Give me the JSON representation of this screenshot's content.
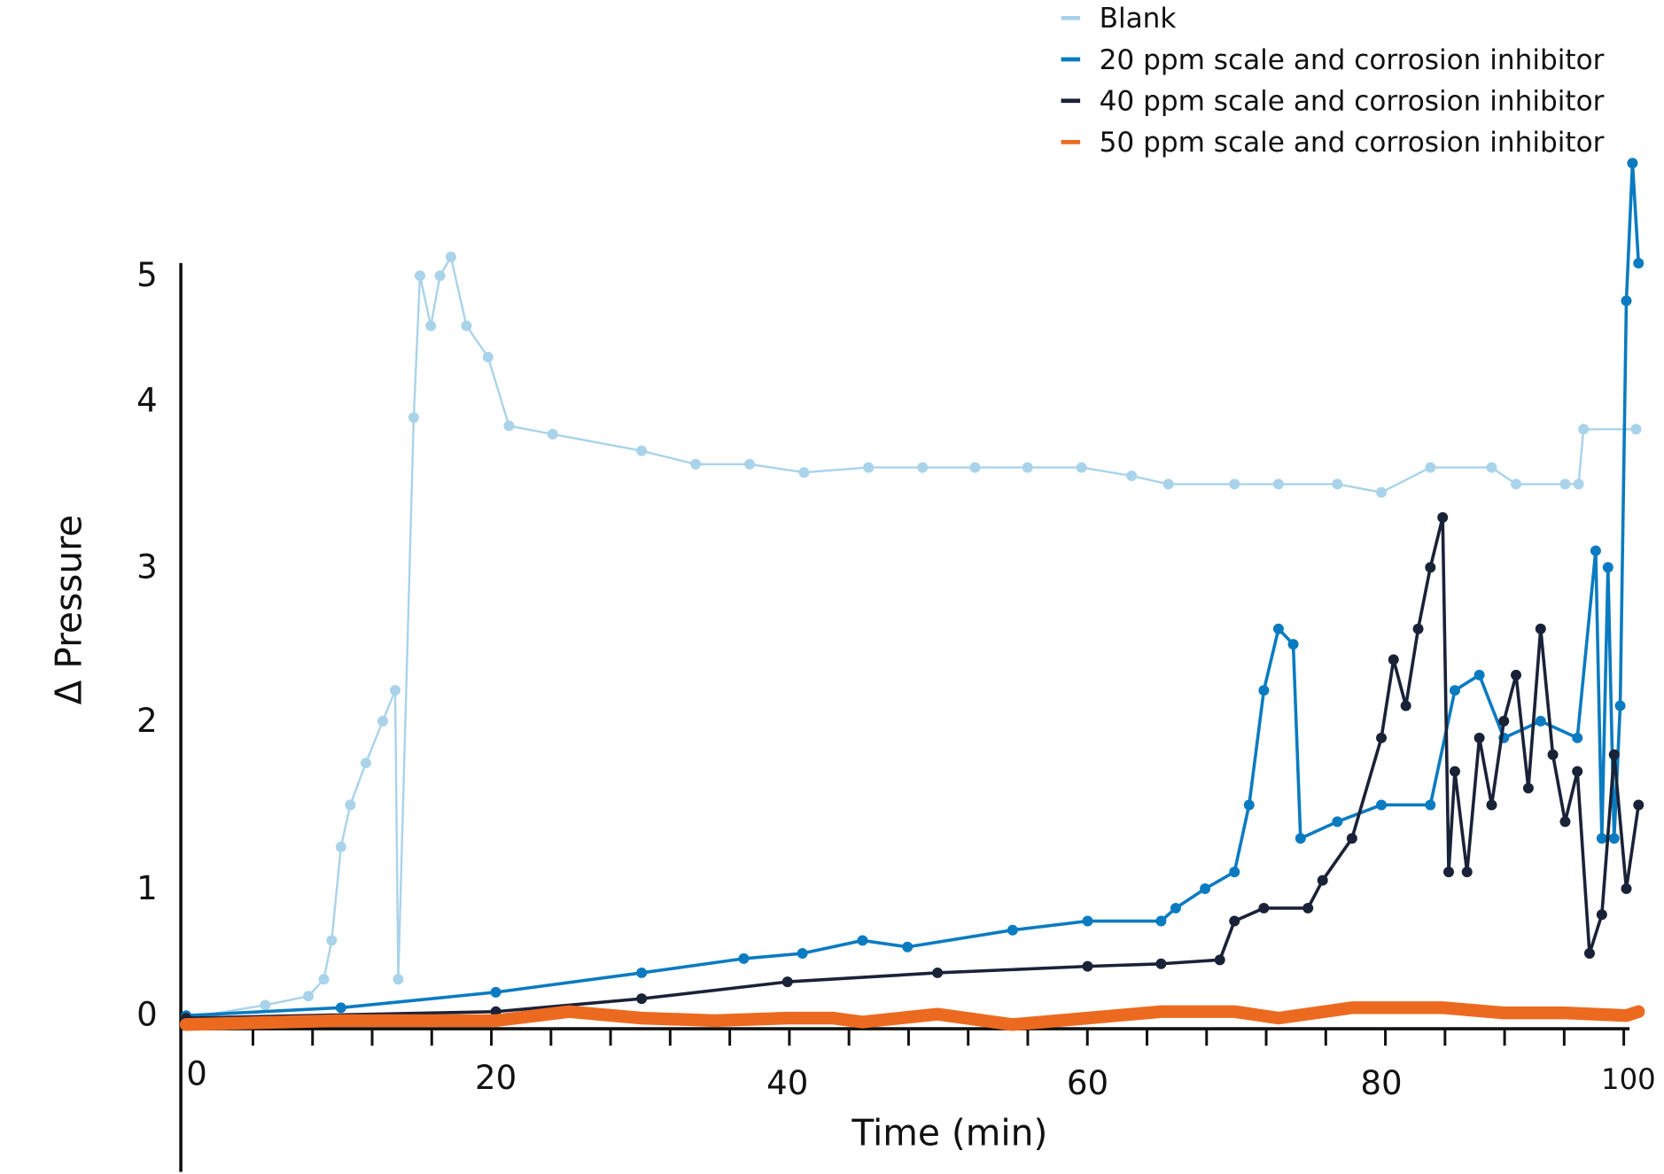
{
  "chart_data": {
    "type": "line",
    "title": "",
    "xlabel": "Time (min)",
    "ylabel": "Δ Pressure",
    "xlim": [
      0,
      101
    ],
    "ylim": [
      -0.1,
      5.9
    ],
    "x_ticks": [
      "0",
      "20",
      "40",
      "60",
      "80",
      "100"
    ],
    "y_ticks": [
      "0",
      "1",
      "2",
      "3",
      "4",
      "5"
    ],
    "grid": false,
    "legend_position": "top-right",
    "series": [
      {
        "name": "Blank",
        "color": "#a9d3ea",
        "width": 2,
        "x": [
          0,
          5.1,
          7.9,
          8.9,
          9.4,
          10,
          10.6,
          11.6,
          12.7,
          13.5,
          13.7,
          14.7,
          15.1,
          15.8,
          16.4,
          17.1,
          18.1,
          19.5,
          20.9,
          23.9,
          30,
          33.7,
          37.4,
          41.1,
          45.4,
          49,
          52.5,
          56,
          59.6,
          63,
          65.5,
          70,
          73,
          77,
          80,
          84,
          89,
          91,
          95,
          96.1,
          96.5,
          100.8
        ],
        "y": [
          0,
          0.1,
          0.17,
          0.3,
          0.6,
          1.25,
          1.5,
          1.75,
          2.0,
          2.2,
          0.3,
          3.9,
          5.0,
          4.6,
          5.0,
          5.15,
          4.6,
          4.35,
          3.85,
          3.8,
          3.7,
          3.62,
          3.62,
          3.57,
          3.6,
          3.6,
          3.6,
          3.6,
          3.6,
          3.55,
          3.5,
          3.5,
          3.5,
          3.5,
          3.45,
          3.6,
          3.6,
          3.5,
          3.5,
          3.5,
          3.83,
          3.83
        ]
      },
      {
        "name": "20 ppm scale and corrosion inhibitor",
        "color": "#0a7bc1",
        "width": 3,
        "x": [
          0,
          10,
          20,
          30,
          37,
          41,
          45,
          48,
          55,
          60,
          65,
          66,
          68,
          70,
          71,
          72,
          73,
          74,
          74.5,
          77,
          80,
          84,
          86,
          88,
          90,
          93,
          96,
          97.5,
          98,
          98.5,
          99,
          99.5,
          100,
          100.5,
          101
        ],
        "y": [
          0.02,
          0.08,
          0.2,
          0.35,
          0.46,
          0.5,
          0.6,
          0.55,
          0.68,
          0.75,
          0.75,
          0.85,
          1.0,
          1.1,
          1.5,
          2.2,
          2.6,
          2.5,
          1.3,
          1.4,
          1.5,
          1.5,
          2.2,
          2.3,
          1.9,
          2.0,
          1.9,
          3.1,
          1.3,
          3.0,
          1.3,
          2.1,
          4.8,
          5.9,
          5.1
        ]
      },
      {
        "name": "40 ppm scale and corrosion inhibitor",
        "color": "#1a2238",
        "width": 3,
        "x": [
          0,
          20,
          30,
          40,
          50,
          60,
          65,
          69,
          70,
          72,
          75,
          76,
          78,
          80,
          81,
          82,
          83,
          84,
          85,
          85.5,
          86,
          87,
          88,
          89,
          90,
          91,
          92,
          93,
          94,
          95,
          96,
          97,
          98,
          99,
          100,
          101
        ],
        "y": [
          0,
          0.05,
          0.15,
          0.28,
          0.35,
          0.4,
          0.42,
          0.45,
          0.75,
          0.85,
          0.85,
          1.05,
          1.3,
          1.9,
          2.4,
          2.1,
          2.6,
          3.0,
          3.3,
          1.1,
          1.7,
          1.1,
          1.9,
          1.5,
          2.0,
          2.3,
          1.6,
          2.6,
          1.8,
          1.4,
          1.7,
          0.5,
          0.8,
          1.8,
          1.0,
          1.5
        ]
      },
      {
        "name": "50 ppm scale and corrosion inhibitor",
        "color": "#ec6a1f",
        "width": 12,
        "x": [
          0,
          10,
          20,
          25,
          30,
          35,
          40,
          43,
          45,
          50,
          55,
          60,
          65,
          70,
          73,
          78,
          85,
          90,
          95,
          100,
          101
        ],
        "y": [
          -0.05,
          -0.02,
          -0.02,
          0.05,
          0.0,
          -0.02,
          0.0,
          0.0,
          -0.03,
          0.03,
          -0.05,
          0.0,
          0.05,
          0.05,
          0.0,
          0.08,
          0.08,
          0.04,
          0.04,
          0.02,
          0.05
        ]
      }
    ]
  }
}
